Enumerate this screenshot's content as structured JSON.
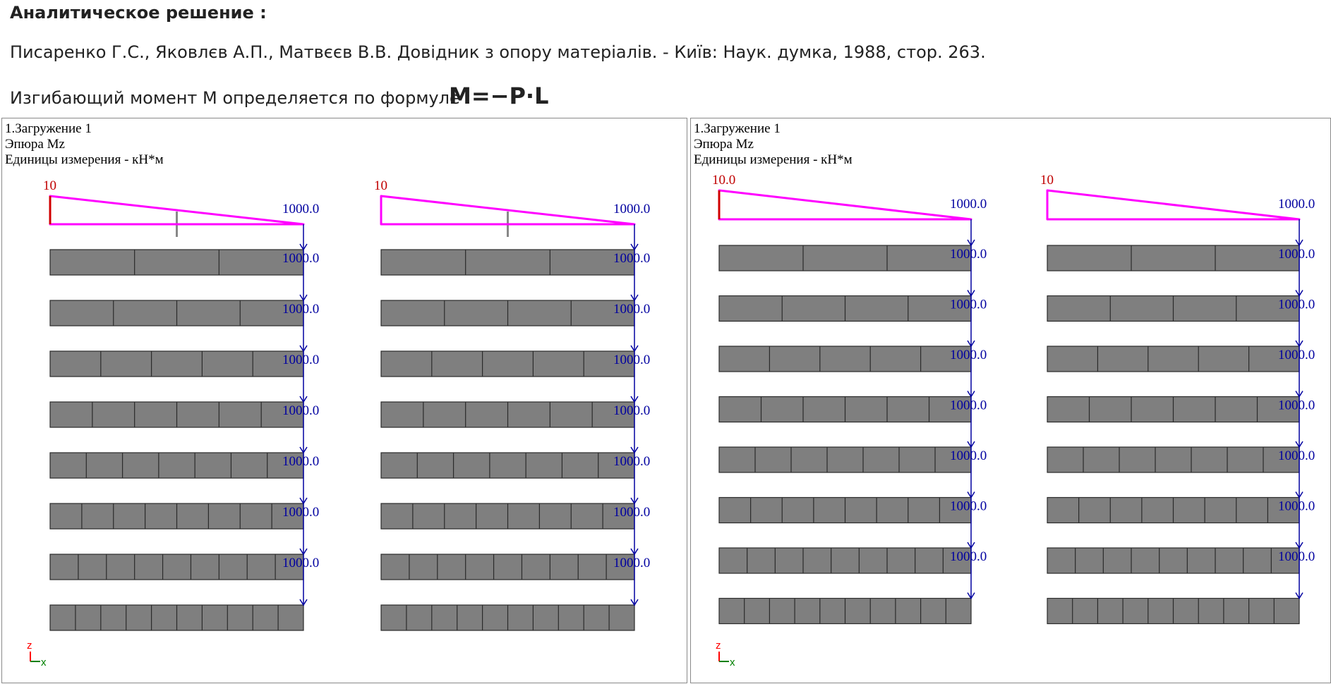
{
  "header": {
    "title": "Аналитическое решение :",
    "reference": "Писаренко Г.С., Яковлєв А.П., Матвєєв В.В. Довідник з опору матеріалів. - Київ: Наук. думка, 1988, стор. 263.",
    "formula_text": "Изгибающий момент М определяется по формуле :",
    "formula": "M=−P·L"
  },
  "colors": {
    "epure": "#ff00ff",
    "fixed_end": "#d00000",
    "beam_fill": "#7f7f7f",
    "load": "#0000a0",
    "axis_z": "#ff0000",
    "axis_x": "#008000"
  },
  "panels": [
    {
      "load_case": "1.Загружение 1",
      "diagram": "Эпюра Mz",
      "units": "Единицы измерения - кН*м",
      "columns": [
        {
          "top_left_label": "10",
          "top_right_label": "1000.0",
          "fixed_end_marked": true,
          "segments": [
            3,
            4,
            5,
            6,
            7,
            8,
            9,
            10
          ],
          "load_labels": [
            "1000.0",
            "1000.0",
            "1000.0",
            "1000.0",
            "1000.0",
            "1000.0",
            "1000.0"
          ]
        },
        {
          "top_left_label": "10",
          "top_right_label": "1000.0",
          "fixed_end_marked": false,
          "segments": [
            3,
            4,
            5,
            6,
            7,
            8,
            9,
            10
          ],
          "load_labels": [
            "1000.0",
            "1000.0",
            "1000.0",
            "1000.0",
            "1000.0",
            "1000.0",
            "1000.0"
          ]
        }
      ],
      "axes": {
        "z": "z",
        "x": "x"
      }
    },
    {
      "load_case": "1.Загружение 1",
      "diagram": "Эпюра Mz",
      "units": "Единицы измерения - кН*м",
      "columns": [
        {
          "top_left_label": "10.0",
          "top_right_label": "1000.0",
          "fixed_end_marked": true,
          "segments": [
            3,
            4,
            5,
            6,
            7,
            8,
            9,
            10
          ],
          "load_labels": [
            "1000.0",
            "1000.0",
            "1000.0",
            "1000.0",
            "1000.0",
            "1000.0",
            "1000.0"
          ]
        },
        {
          "top_left_label": "10",
          "top_right_label": "1000.0",
          "fixed_end_marked": false,
          "segments": [
            3,
            4,
            5,
            6,
            7,
            8,
            9,
            10
          ],
          "load_labels": [
            "1000.0",
            "1000.0",
            "1000.0",
            "1000.0",
            "1000.0",
            "1000.0",
            "1000.0"
          ]
        }
      ],
      "axes": {
        "z": "z",
        "x": "x"
      }
    }
  ]
}
